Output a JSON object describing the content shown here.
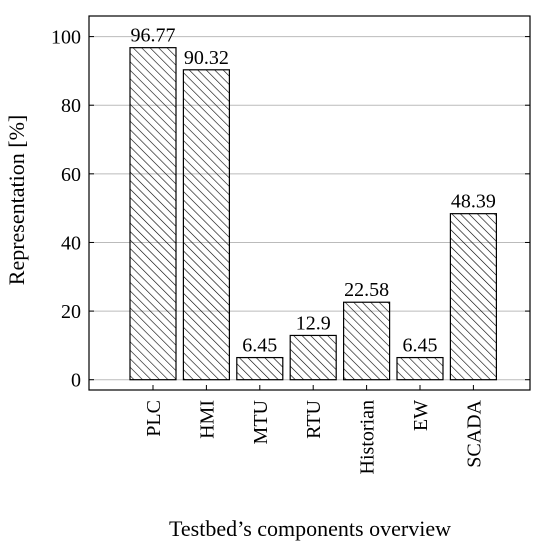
{
  "chart_data": {
    "type": "bar",
    "x_label": "Testbed’s components overview",
    "y_label": "Representation [%]",
    "categories": [
      "PLC",
      "HMI",
      "MTU",
      "RTU",
      "Historian",
      "EW",
      "SCADA"
    ],
    "values": [
      96.77,
      90.32,
      6.45,
      12.9,
      22.58,
      6.45,
      48.39
    ],
    "color": "#000000",
    "ylim": [
      -3,
      106
    ],
    "yticks": [
      0,
      20,
      40,
      60,
      80,
      100
    ],
    "grid": true
  }
}
